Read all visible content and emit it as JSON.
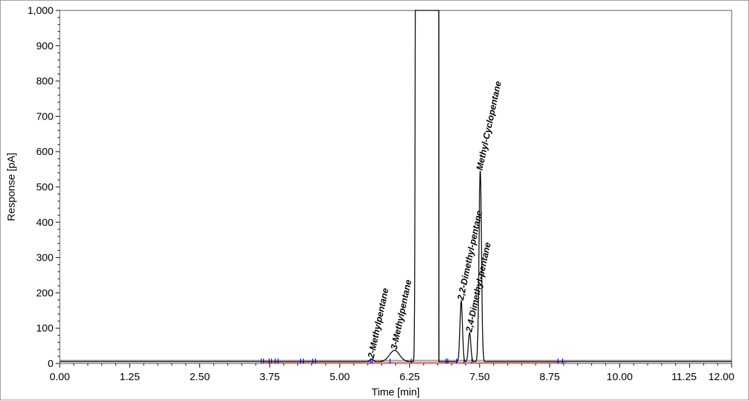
{
  "chart_data": {
    "type": "line",
    "title": "",
    "xlabel": "Time [min]",
    "ylabel": "Response [pA]",
    "xlim": [
      0,
      12
    ],
    "ylim": [
      0,
      1000
    ],
    "x_ticks": [
      "0.00",
      "1.25",
      "2.50",
      "3.75",
      "5.00",
      "6.25",
      "7.50",
      "8.75",
      "10.00",
      "11.25",
      "12.00"
    ],
    "x_tick_values": [
      0,
      1.25,
      2.5,
      3.75,
      5,
      6.25,
      7.5,
      8.75,
      10,
      11.25,
      12
    ],
    "y_ticks": [
      "0",
      "100",
      "200",
      "300",
      "400",
      "500",
      "600",
      "700",
      "800",
      "900",
      "1,000"
    ],
    "y_tick_values": [
      0,
      100,
      200,
      300,
      400,
      500,
      600,
      700,
      800,
      900,
      1000
    ],
    "grid": false,
    "baseline": 5,
    "series": [
      {
        "peaks": [
          {
            "time": 5.57,
            "height": 8,
            "width": 0.03
          },
          {
            "time": 5.98,
            "height": 32,
            "width": 0.09
          },
          {
            "time": 6.35,
            "height": 1000,
            "width": 0.0,
            "solvent_start": true
          },
          {
            "time": 6.77,
            "height": 1000,
            "width": 0.0,
            "solvent_end": true
          },
          {
            "time": 7.17,
            "height": 172,
            "width": 0.022
          },
          {
            "time": 7.32,
            "height": 82,
            "width": 0.022
          },
          {
            "time": 7.51,
            "height": 540,
            "width": 0.022
          }
        ]
      }
    ],
    "peak_labels": [
      {
        "text": "2-Methylpentane",
        "time": 5.57,
        "value": 8
      },
      {
        "text": "3-Methylpentane",
        "time": 5.98,
        "value": 32
      },
      {
        "text": "2,2-Dimethyl-pentane",
        "time": 7.17,
        "value": 172
      },
      {
        "text": "2,4-Dimethyl-pentane",
        "time": 7.32,
        "value": 82
      },
      {
        "text": "Methyl-Cyclopentane",
        "time": 7.51,
        "value": 540
      }
    ],
    "integration_marks": [
      3.6,
      3.64,
      3.74,
      3.78,
      3.85,
      3.9,
      4.3,
      4.35,
      4.52,
      4.57,
      5.55,
      5.58,
      5.9,
      6.28,
      6.9,
      6.93,
      7.09,
      7.22,
      7.36,
      8.9,
      8.98
    ],
    "colors": {
      "trace": "#000000",
      "baseline": "#ff0000",
      "marks": "#0000ff",
      "frame": "#555555"
    }
  }
}
